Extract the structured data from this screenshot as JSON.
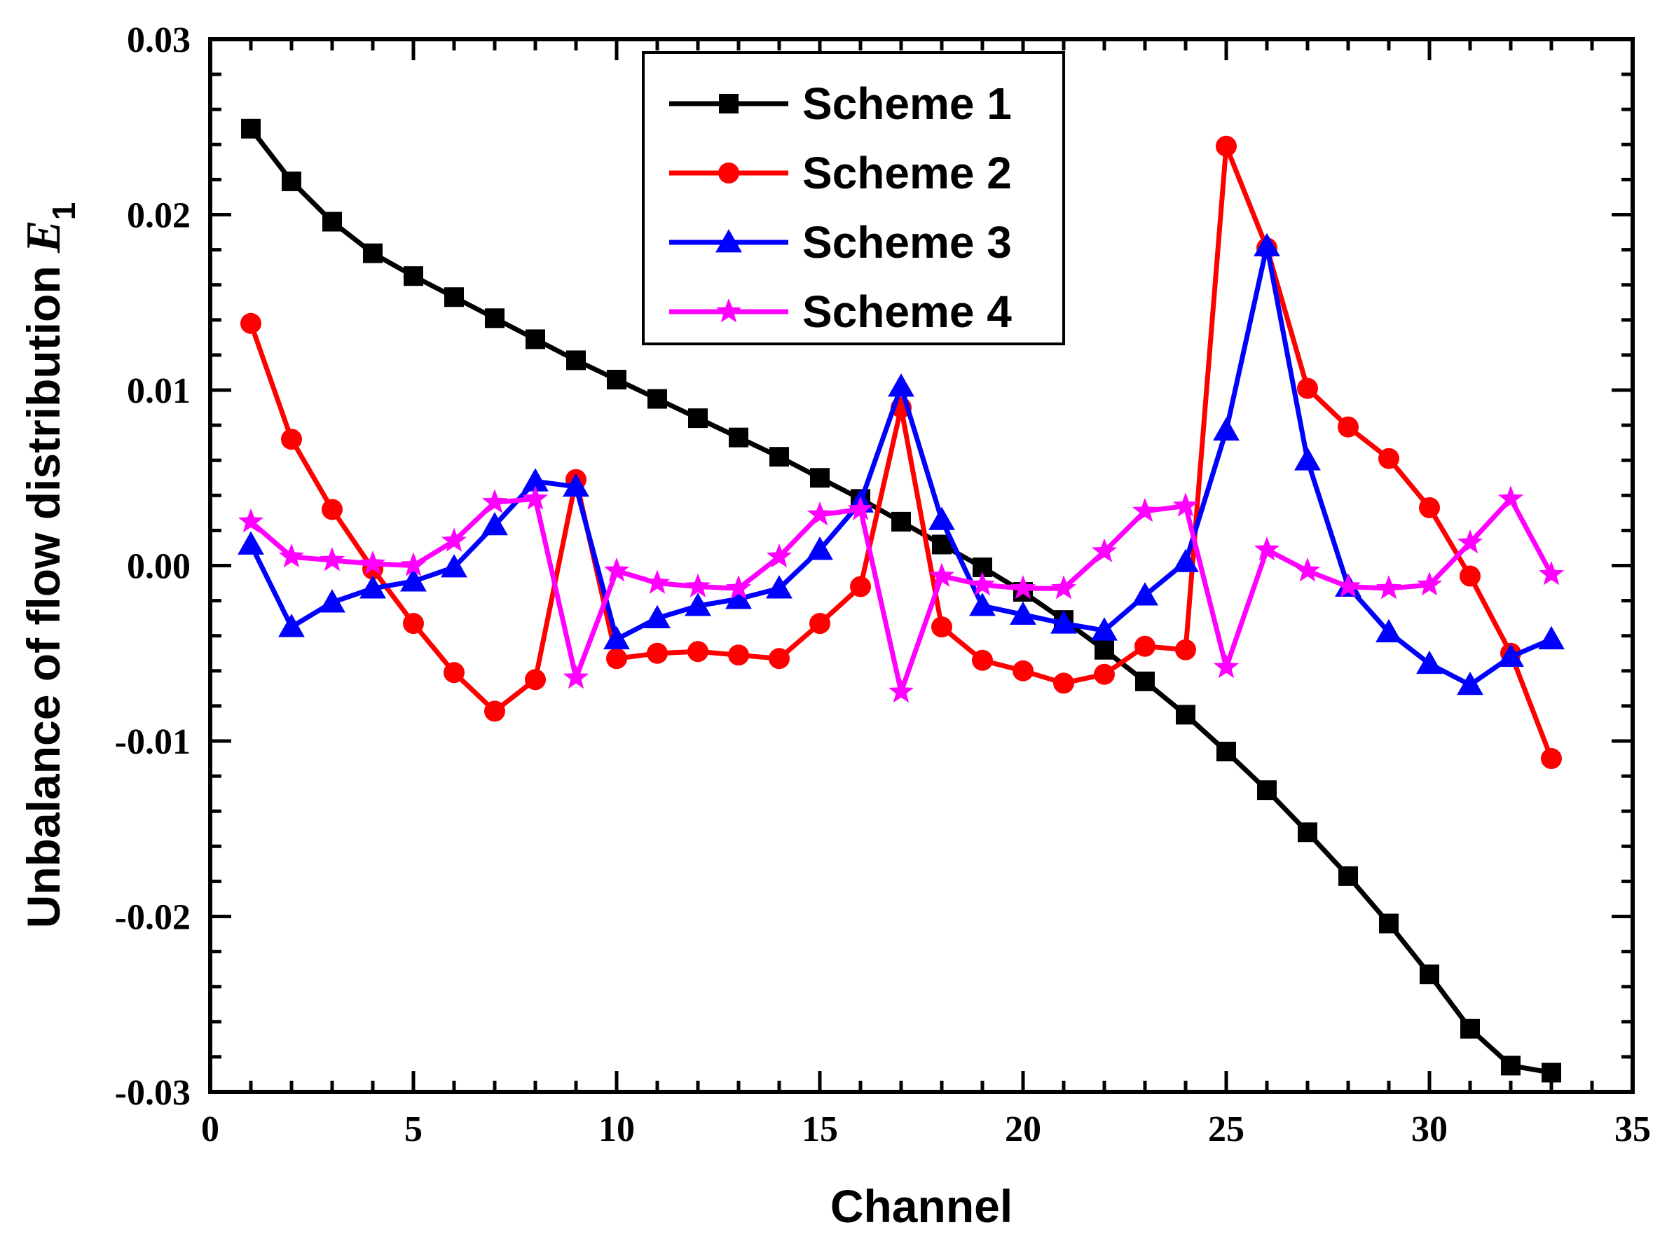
{
  "chart_data": {
    "type": "line",
    "title": "",
    "xlabel": "Channel",
    "ylabel": "Unbalance of flow distribution ",
    "ylabel_var": "E",
    "ylabel_sub": "1",
    "xlim": [
      0,
      35
    ],
    "ylim": [
      -0.03,
      0.03
    ],
    "xticks": [
      "0",
      "5",
      "10",
      "15",
      "20",
      "25",
      "30",
      "35"
    ],
    "yticks": [
      "-0.03",
      "-0.02",
      "-0.01",
      "0.00",
      "0.01",
      "0.02",
      "0.03"
    ],
    "legend_position": "top-center",
    "grid": false,
    "x": [
      1,
      2,
      3,
      4,
      5,
      6,
      7,
      8,
      9,
      10,
      11,
      12,
      13,
      14,
      15,
      16,
      17,
      18,
      19,
      20,
      21,
      22,
      23,
      24,
      25,
      26,
      27,
      28,
      29,
      30,
      31,
      32,
      33
    ],
    "series": [
      {
        "name": "Scheme 1",
        "color": "#000000",
        "marker": "square",
        "values": [
          0.0249,
          0.0219,
          0.0196,
          0.0178,
          0.0165,
          0.0153,
          0.0141,
          0.0129,
          0.0117,
          0.0106,
          0.0095,
          0.0084,
          0.0073,
          0.0062,
          0.005,
          0.0038,
          0.0025,
          0.0012,
          -0.0001,
          -0.0015,
          -0.0031,
          -0.0048,
          -0.0066,
          -0.0085,
          -0.0106,
          -0.0128,
          -0.0152,
          -0.0177,
          -0.0204,
          -0.0233,
          -0.0264,
          -0.0285,
          -0.0289
        ]
      },
      {
        "name": "Scheme 2",
        "color": "#ff0000",
        "marker": "circle",
        "values": [
          0.0138,
          0.0072,
          0.0032,
          -0.0002,
          -0.0033,
          -0.0061,
          -0.0083,
          -0.0065,
          0.0049,
          -0.0053,
          -0.005,
          -0.0049,
          -0.0051,
          -0.0053,
          -0.0033,
          -0.0012,
          0.009,
          -0.0035,
          -0.0054,
          -0.006,
          -0.0067,
          -0.0062,
          -0.0046,
          -0.0048,
          0.0239,
          0.0181,
          0.0101,
          0.0079,
          0.0061,
          0.0033,
          -0.0006,
          -0.005,
          -0.011
        ]
      },
      {
        "name": "Scheme 3",
        "color": "#0000ff",
        "marker": "triangle",
        "values": [
          0.0012,
          -0.0035,
          -0.0021,
          -0.0013,
          -0.0009,
          -0.0001,
          0.0023,
          0.0048,
          0.0045,
          -0.0042,
          -0.003,
          -0.0023,
          -0.0019,
          -0.0013,
          0.0009,
          0.0036,
          0.0102,
          0.0026,
          -0.0023,
          -0.0028,
          -0.0033,
          -0.0037,
          -0.0017,
          0.0002,
          0.0077,
          0.0182,
          0.006,
          -0.0012,
          -0.0038,
          -0.0056,
          -0.0068,
          -0.0052,
          -0.0042
        ]
      },
      {
        "name": "Scheme 4",
        "color": "#ff00ff",
        "marker": "star",
        "values": [
          0.0025,
          0.0005,
          0.0003,
          0.0001,
          0.0,
          0.0014,
          0.0036,
          0.0038,
          -0.0064,
          -0.0003,
          -0.001,
          -0.0012,
          -0.0013,
          0.0005,
          0.0029,
          0.0032,
          -0.0072,
          -0.0006,
          -0.0011,
          -0.0013,
          -0.0013,
          0.0008,
          0.0031,
          0.0034,
          -0.0058,
          0.0009,
          -0.0003,
          -0.0012,
          -0.0013,
          -0.0011,
          0.0013,
          0.0038,
          -0.0005
        ]
      }
    ]
  }
}
